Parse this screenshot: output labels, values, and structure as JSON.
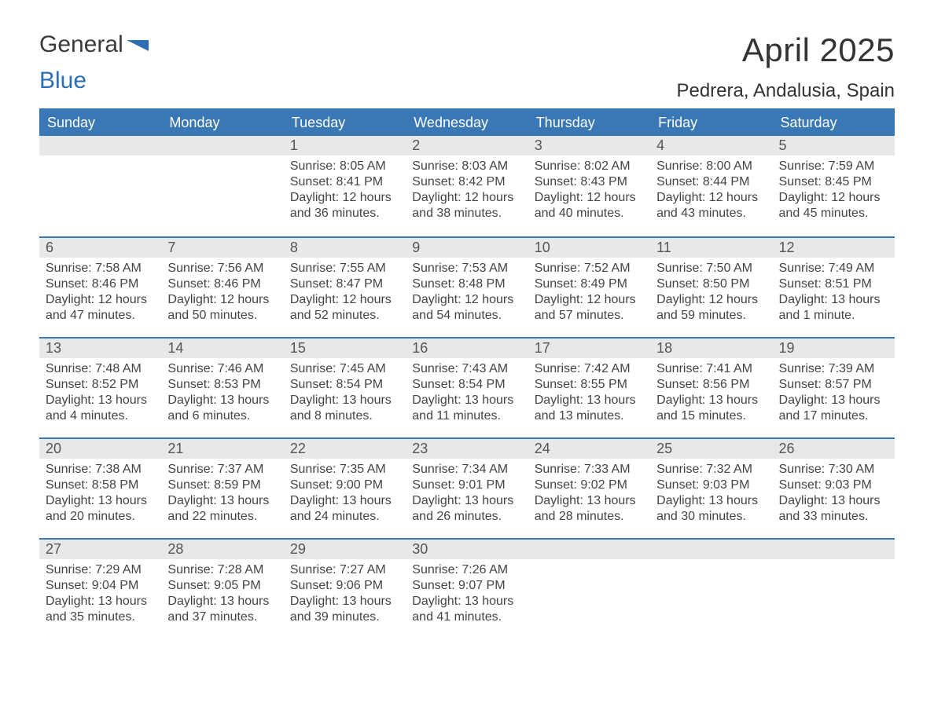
{
  "logo": {
    "word1": "General",
    "word2": "Blue"
  },
  "title": "April 2025",
  "location": "Pedrera, Andalusia, Spain",
  "colors": {
    "header_bg": "#3a78b5",
    "header_text": "#ffffff",
    "daynum_bg": "#e8e8e8",
    "daynum_text": "#555555",
    "body_text": "#444444",
    "logo_gray": "#3a3a3a",
    "logo_blue": "#2c6fb3"
  },
  "daysOfWeek": [
    "Sunday",
    "Monday",
    "Tuesday",
    "Wednesday",
    "Thursday",
    "Friday",
    "Saturday"
  ],
  "weeks": [
    [
      {
        "n": "",
        "sunrise": "",
        "sunset": "",
        "daylight": ""
      },
      {
        "n": "",
        "sunrise": "",
        "sunset": "",
        "daylight": ""
      },
      {
        "n": "1",
        "sunrise": "Sunrise: 8:05 AM",
        "sunset": "Sunset: 8:41 PM",
        "daylight": "Daylight: 12 hours and 36 minutes."
      },
      {
        "n": "2",
        "sunrise": "Sunrise: 8:03 AM",
        "sunset": "Sunset: 8:42 PM",
        "daylight": "Daylight: 12 hours and 38 minutes."
      },
      {
        "n": "3",
        "sunrise": "Sunrise: 8:02 AM",
        "sunset": "Sunset: 8:43 PM",
        "daylight": "Daylight: 12 hours and 40 minutes."
      },
      {
        "n": "4",
        "sunrise": "Sunrise: 8:00 AM",
        "sunset": "Sunset: 8:44 PM",
        "daylight": "Daylight: 12 hours and 43 minutes."
      },
      {
        "n": "5",
        "sunrise": "Sunrise: 7:59 AM",
        "sunset": "Sunset: 8:45 PM",
        "daylight": "Daylight: 12 hours and 45 minutes."
      }
    ],
    [
      {
        "n": "6",
        "sunrise": "Sunrise: 7:58 AM",
        "sunset": "Sunset: 8:46 PM",
        "daylight": "Daylight: 12 hours and 47 minutes."
      },
      {
        "n": "7",
        "sunrise": "Sunrise: 7:56 AM",
        "sunset": "Sunset: 8:46 PM",
        "daylight": "Daylight: 12 hours and 50 minutes."
      },
      {
        "n": "8",
        "sunrise": "Sunrise: 7:55 AM",
        "sunset": "Sunset: 8:47 PM",
        "daylight": "Daylight: 12 hours and 52 minutes."
      },
      {
        "n": "9",
        "sunrise": "Sunrise: 7:53 AM",
        "sunset": "Sunset: 8:48 PM",
        "daylight": "Daylight: 12 hours and 54 minutes."
      },
      {
        "n": "10",
        "sunrise": "Sunrise: 7:52 AM",
        "sunset": "Sunset: 8:49 PM",
        "daylight": "Daylight: 12 hours and 57 minutes."
      },
      {
        "n": "11",
        "sunrise": "Sunrise: 7:50 AM",
        "sunset": "Sunset: 8:50 PM",
        "daylight": "Daylight: 12 hours and 59 minutes."
      },
      {
        "n": "12",
        "sunrise": "Sunrise: 7:49 AM",
        "sunset": "Sunset: 8:51 PM",
        "daylight": "Daylight: 13 hours and 1 minute."
      }
    ],
    [
      {
        "n": "13",
        "sunrise": "Sunrise: 7:48 AM",
        "sunset": "Sunset: 8:52 PM",
        "daylight": "Daylight: 13 hours and 4 minutes."
      },
      {
        "n": "14",
        "sunrise": "Sunrise: 7:46 AM",
        "sunset": "Sunset: 8:53 PM",
        "daylight": "Daylight: 13 hours and 6 minutes."
      },
      {
        "n": "15",
        "sunrise": "Sunrise: 7:45 AM",
        "sunset": "Sunset: 8:54 PM",
        "daylight": "Daylight: 13 hours and 8 minutes."
      },
      {
        "n": "16",
        "sunrise": "Sunrise: 7:43 AM",
        "sunset": "Sunset: 8:54 PM",
        "daylight": "Daylight: 13 hours and 11 minutes."
      },
      {
        "n": "17",
        "sunrise": "Sunrise: 7:42 AM",
        "sunset": "Sunset: 8:55 PM",
        "daylight": "Daylight: 13 hours and 13 minutes."
      },
      {
        "n": "18",
        "sunrise": "Sunrise: 7:41 AM",
        "sunset": "Sunset: 8:56 PM",
        "daylight": "Daylight: 13 hours and 15 minutes."
      },
      {
        "n": "19",
        "sunrise": "Sunrise: 7:39 AM",
        "sunset": "Sunset: 8:57 PM",
        "daylight": "Daylight: 13 hours and 17 minutes."
      }
    ],
    [
      {
        "n": "20",
        "sunrise": "Sunrise: 7:38 AM",
        "sunset": "Sunset: 8:58 PM",
        "daylight": "Daylight: 13 hours and 20 minutes."
      },
      {
        "n": "21",
        "sunrise": "Sunrise: 7:37 AM",
        "sunset": "Sunset: 8:59 PM",
        "daylight": "Daylight: 13 hours and 22 minutes."
      },
      {
        "n": "22",
        "sunrise": "Sunrise: 7:35 AM",
        "sunset": "Sunset: 9:00 PM",
        "daylight": "Daylight: 13 hours and 24 minutes."
      },
      {
        "n": "23",
        "sunrise": "Sunrise: 7:34 AM",
        "sunset": "Sunset: 9:01 PM",
        "daylight": "Daylight: 13 hours and 26 minutes."
      },
      {
        "n": "24",
        "sunrise": "Sunrise: 7:33 AM",
        "sunset": "Sunset: 9:02 PM",
        "daylight": "Daylight: 13 hours and 28 minutes."
      },
      {
        "n": "25",
        "sunrise": "Sunrise: 7:32 AM",
        "sunset": "Sunset: 9:03 PM",
        "daylight": "Daylight: 13 hours and 30 minutes."
      },
      {
        "n": "26",
        "sunrise": "Sunrise: 7:30 AM",
        "sunset": "Sunset: 9:03 PM",
        "daylight": "Daylight: 13 hours and 33 minutes."
      }
    ],
    [
      {
        "n": "27",
        "sunrise": "Sunrise: 7:29 AM",
        "sunset": "Sunset: 9:04 PM",
        "daylight": "Daylight: 13 hours and 35 minutes."
      },
      {
        "n": "28",
        "sunrise": "Sunrise: 7:28 AM",
        "sunset": "Sunset: 9:05 PM",
        "daylight": "Daylight: 13 hours and 37 minutes."
      },
      {
        "n": "29",
        "sunrise": "Sunrise: 7:27 AM",
        "sunset": "Sunset: 9:06 PM",
        "daylight": "Daylight: 13 hours and 39 minutes."
      },
      {
        "n": "30",
        "sunrise": "Sunrise: 7:26 AM",
        "sunset": "Sunset: 9:07 PM",
        "daylight": "Daylight: 13 hours and 41 minutes."
      },
      {
        "n": "",
        "sunrise": "",
        "sunset": "",
        "daylight": ""
      },
      {
        "n": "",
        "sunrise": "",
        "sunset": "",
        "daylight": ""
      },
      {
        "n": "",
        "sunrise": "",
        "sunset": "",
        "daylight": ""
      }
    ]
  ]
}
